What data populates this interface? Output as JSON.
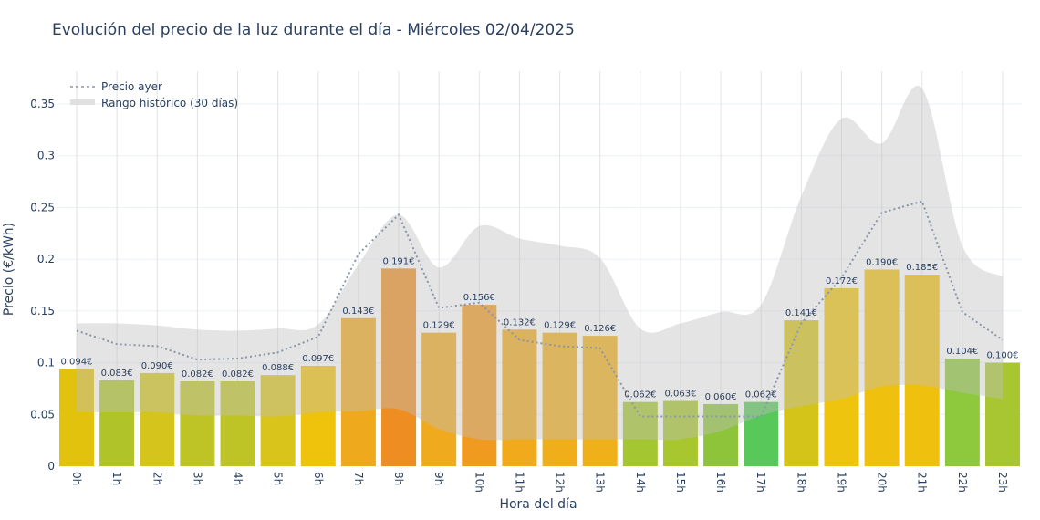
{
  "chart_data": {
    "type": "bar",
    "title": "Evolución del precio de la luz durante el día - Miércoles 02/04/2025",
    "xlabel": "Hora del día",
    "ylabel": "Precio (€/kWh)",
    "ylim": [
      0,
      0.38
    ],
    "yticks": [
      0,
      0.05,
      0.1,
      0.15,
      0.2,
      0.25,
      0.3,
      0.35
    ],
    "ytick_labels": [
      "0",
      "0.05",
      "0.1",
      "0.15",
      "0.2",
      "0.25",
      "0.3",
      "0.35"
    ],
    "grid": true,
    "legend_position": "top-left",
    "categories": [
      "0h",
      "1h",
      "2h",
      "3h",
      "4h",
      "5h",
      "6h",
      "7h",
      "8h",
      "9h",
      "10h",
      "11h",
      "12h",
      "13h",
      "14h",
      "15h",
      "16h",
      "17h",
      "18h",
      "19h",
      "20h",
      "21h",
      "22h",
      "23h"
    ],
    "values": [
      0.094,
      0.083,
      0.09,
      0.082,
      0.082,
      0.088,
      0.097,
      0.143,
      0.191,
      0.129,
      0.156,
      0.132,
      0.129,
      0.126,
      0.062,
      0.063,
      0.06,
      0.062,
      0.141,
      0.172,
      0.19,
      0.185,
      0.104,
      0.1
    ],
    "value_labels": [
      "0.094€",
      "0.083€",
      "0.090€",
      "0.082€",
      "0.082€",
      "0.088€",
      "0.097€",
      "0.143€",
      "0.191€",
      "0.129€",
      "0.156€",
      "0.132€",
      "0.129€",
      "0.126€",
      "0.062€",
      "0.063€",
      "0.060€",
      "0.062€",
      "0.141€",
      "0.172€",
      "0.190€",
      "0.185€",
      "0.104€",
      "0.100€"
    ],
    "bar_colors": [
      "#e3c20e",
      "#b0c42a",
      "#d4c41c",
      "#bfc426",
      "#bfc426",
      "#d8c41a",
      "#efc20c",
      "#eeaa1c",
      "#ee8e22",
      "#efaa1e",
      "#f09a20",
      "#f0aa1c",
      "#f0ae1a",
      "#f0b01a",
      "#a4c630",
      "#a8c62e",
      "#8ec43a",
      "#58c85a",
      "#d4c41a",
      "#eec40e",
      "#efc00e",
      "#efc00e",
      "#8ec83c",
      "#a8c632"
    ],
    "series": [
      {
        "name": "Precio ayer",
        "type": "line",
        "style": "dotted",
        "color": "#8a96a8",
        "values": [
          0.131,
          0.118,
          0.116,
          0.103,
          0.104,
          0.11,
          0.125,
          0.205,
          0.243,
          0.153,
          0.158,
          0.122,
          0.116,
          0.114,
          0.048,
          0.048,
          0.048,
          0.048,
          0.138,
          0.182,
          0.245,
          0.256,
          0.149,
          0.122
        ]
      },
      {
        "name": "Rango histórico (30 días)",
        "type": "band",
        "color": "#d0d0d0",
        "upper": [
          0.138,
          0.138,
          0.136,
          0.132,
          0.131,
          0.133,
          0.137,
          0.195,
          0.243,
          0.192,
          0.232,
          0.22,
          0.213,
          0.201,
          0.133,
          0.138,
          0.149,
          0.156,
          0.261,
          0.336,
          0.312,
          0.365,
          0.213,
          0.183
        ],
        "lower": [
          0.052,
          0.052,
          0.052,
          0.049,
          0.049,
          0.048,
          0.052,
          0.053,
          0.055,
          0.036,
          0.026,
          0.026,
          0.026,
          0.026,
          0.026,
          0.026,
          0.034,
          0.049,
          0.058,
          0.065,
          0.077,
          0.078,
          0.071,
          0.065
        ]
      }
    ]
  }
}
